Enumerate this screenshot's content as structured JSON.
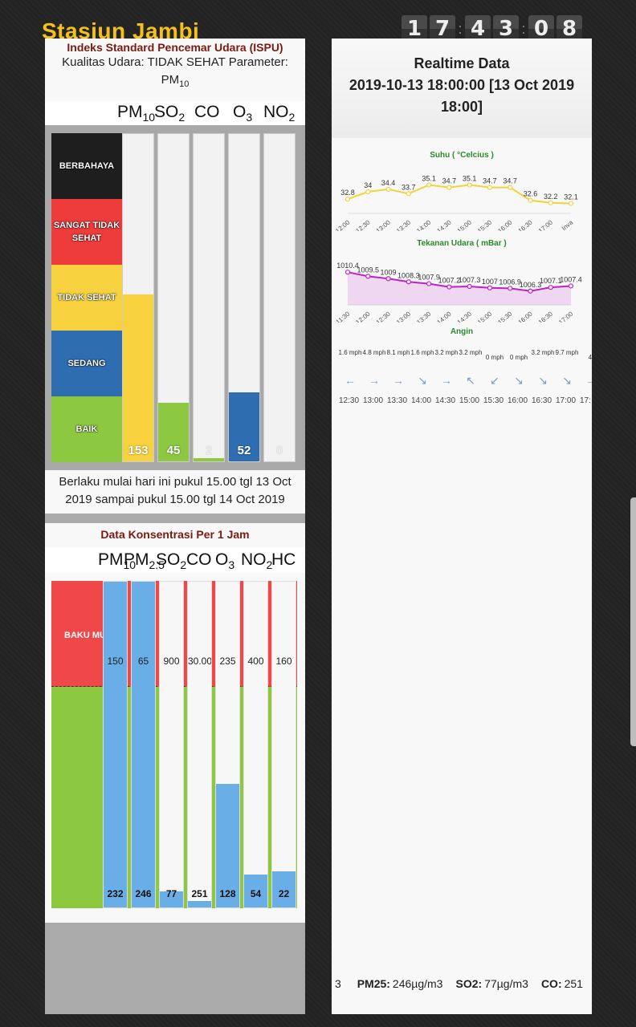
{
  "header": {
    "station": "Stasiun Jambi",
    "clock": [
      "1",
      "7",
      "4",
      "3",
      "0",
      "8"
    ]
  },
  "ispu": {
    "title": "Indeks Standard Pencemar Udara (ISPU)",
    "quality_label": "Kualitas Udara: TIDAK SEHAT Parameter:",
    "param_main": "PM",
    "param_sub": "10",
    "columns": [
      {
        "main": "PM",
        "sub": "10"
      },
      {
        "main": "SO",
        "sub": "2"
      },
      {
        "main": "CO",
        "sub": ""
      },
      {
        "main": "O",
        "sub": "3"
      },
      {
        "main": "NO",
        "sub": "2"
      }
    ],
    "zones": [
      {
        "label": "BERBAHAYA",
        "color": "#1e1e1e"
      },
      {
        "label": "SANGAT TIDAK SEHAT",
        "color": "#ee3b3b"
      },
      {
        "label": "TIDAK SEHAT",
        "color": "#f7d23e"
      },
      {
        "label": "SEDANG",
        "color": "#2e6db0"
      },
      {
        "label": "BAIK",
        "color": "#8cc840"
      }
    ],
    "values": [
      {
        "value": 153,
        "display": "153",
        "color": "#f7d23e",
        "fraction": 0.51
      },
      {
        "value": 45,
        "display": "45",
        "color": "#8cc840",
        "fraction": 0.18
      },
      {
        "value": 2,
        "display": "2",
        "color": "#8cc840",
        "fraction": 0.01
      },
      {
        "value": 52,
        "display": "52",
        "color": "#2e6db0",
        "fraction": 0.21
      },
      {
        "value": 0,
        "display": "0",
        "color": "#8cc840",
        "fraction": 0
      }
    ],
    "validity": "Berlaku mulai hari ini pukul 15.00 tgl 13 Oct 2019 sampai pukul 15.00 tgl 14 Oct 2019"
  },
  "konsentrasi": {
    "title": "Data Konsentrasi Per 1 Jam",
    "columns": [
      {
        "main": "PM",
        "sub": "10"
      },
      {
        "main": "PM",
        "sub": "2.5"
      },
      {
        "main": "SO",
        "sub": "2"
      },
      {
        "main": "CO",
        "sub": ""
      },
      {
        "main": "O",
        "sub": "3"
      },
      {
        "main": "NO",
        "sub": "2"
      },
      {
        "main": "HC",
        "sub": ""
      }
    ],
    "baku_label": "BAKU MUTU",
    "bars": [
      {
        "max": "150",
        "value": "232",
        "fraction": 1.0
      },
      {
        "max": "65",
        "value": "246",
        "fraction": 1.0
      },
      {
        "max": "900",
        "value": "77",
        "fraction": 0.05
      },
      {
        "max": "30.000",
        "value": "251",
        "fraction": 0.02
      },
      {
        "max": "235",
        "value": "128",
        "fraction": 0.38
      },
      {
        "max": "400",
        "value": "54",
        "fraction": 0.1
      },
      {
        "max": "160",
        "value": "22",
        "fraction": 0.11
      }
    ]
  },
  "realtime": {
    "title": "Realtime Data",
    "datetime": "2019-10-13 18:00:00 [13 Oct 2019 18:00]"
  },
  "chart_data": [
    {
      "type": "line",
      "title": "Suhu ( °Celcius )",
      "categories": [
        "12:00",
        "12:30",
        "13:00",
        "13:30",
        "14:00",
        "14:30",
        "15:00",
        "15:30",
        "16:00",
        "16:30",
        "17:00",
        "Inva"
      ],
      "series": [
        {
          "values": [
            32.8,
            34,
            34.4,
            33.7,
            35.1,
            34.7,
            35.1,
            34.7,
            34.7,
            32.6,
            32.2,
            32.1
          ]
        }
      ],
      "ylim": [
        31,
        37
      ],
      "color": "#f1d33a"
    },
    {
      "type": "area",
      "title": "Tekanan Udara ( mBar )",
      "categories": [
        "11:30",
        "12:00",
        "12:30",
        "13:00",
        "13:30",
        "14:00",
        "14:30",
        "15:00",
        "15:30",
        "16:00",
        "16:30",
        "17:00"
      ],
      "series": [
        {
          "values": [
            1010.4,
            1009.5,
            1009,
            1008.3,
            1007.9,
            1007.2,
            1007.3,
            1007,
            1006.9,
            1006.3,
            1007.1,
            1007.4
          ]
        }
      ],
      "ylim": [
        1004,
        1012
      ],
      "color": "#c020c8"
    }
  ],
  "wind": {
    "title": "Angin",
    "speeds": [
      "1.6 mph",
      "4.8 mph",
      "8.1 mph",
      "1.6 mph",
      "3.2 mph",
      "3.2 mph",
      "0 mph",
      "0 mph",
      "3.2 mph",
      "9.7 mph",
      "4."
    ],
    "arrows": [
      "←",
      "→",
      "→",
      "↘",
      "→",
      "↖",
      "↙",
      "↘",
      "↘",
      "↘",
      "→"
    ],
    "times": [
      "12:30",
      "13:00",
      "13:30",
      "14:00",
      "14:30",
      "15:00",
      "15:30",
      "16:00",
      "16:30",
      "17:00",
      "17:"
    ]
  },
  "ticker": {
    "lead": "3",
    "items": [
      {
        "label": "PM25:",
        "value": "246µg/m3"
      },
      {
        "label": "SO2:",
        "value": "77µg/m3"
      },
      {
        "label": "CO:",
        "value": "251"
      }
    ]
  }
}
